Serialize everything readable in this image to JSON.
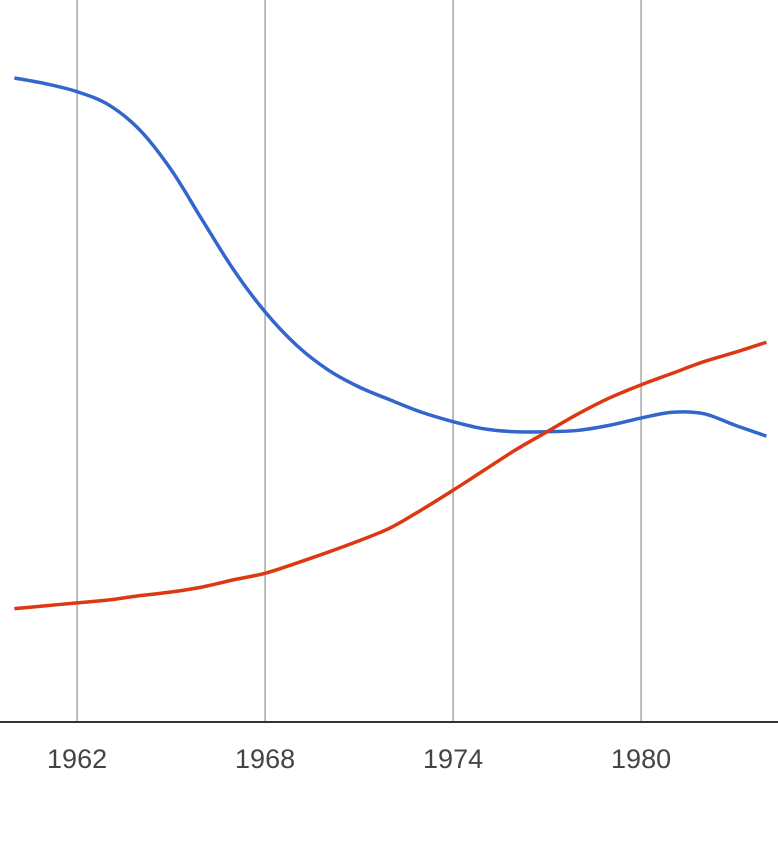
{
  "chart_data": {
    "type": "line",
    "x": [
      1960,
      1961,
      1962,
      1963,
      1964,
      1965,
      1966,
      1967,
      1968,
      1969,
      1970,
      1971,
      1972,
      1973,
      1974,
      1975,
      1976,
      1977,
      1978,
      1979,
      1980,
      1981,
      1982,
      1983,
      1984
    ],
    "series": [
      {
        "color": "#3366cc",
        "values": [
          89.2,
          88.4,
          87.3,
          85.5,
          82.0,
          76.5,
          69.5,
          62.6,
          56.8,
          52.2,
          48.8,
          46.4,
          44.6,
          42.9,
          41.6,
          40.6,
          40.2,
          40.2,
          40.4,
          41.1,
          42.1,
          42.9,
          42.7,
          41.1,
          39.6
        ]
      },
      {
        "color": "#dc3912",
        "values": [
          15.7,
          16.1,
          16.5,
          16.9,
          17.5,
          18.0,
          18.7,
          19.7,
          20.6,
          22.0,
          23.5,
          25.1,
          26.9,
          29.4,
          32.1,
          34.9,
          37.7,
          40.2,
          42.7,
          44.9,
          46.7,
          48.3,
          49.9,
          51.2,
          52.6
        ]
      }
    ],
    "xlim": [
      1959.54,
      1984.37
    ],
    "xticks": [
      1962,
      1968,
      1974,
      1980
    ],
    "ylim": [
      0,
      100
    ],
    "grid": true
  }
}
